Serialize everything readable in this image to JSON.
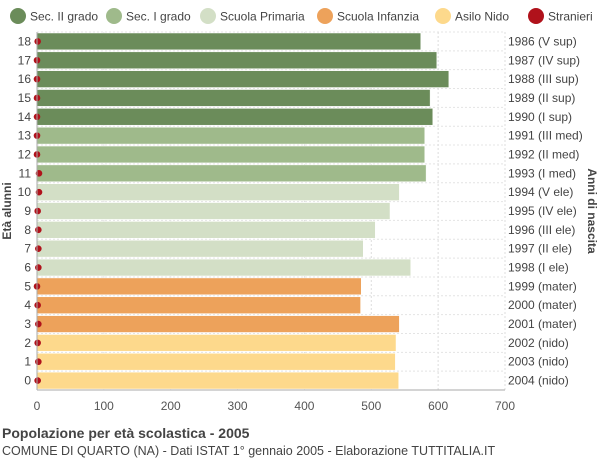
{
  "chart_data": {
    "type": "bar",
    "orientation": "horizontal",
    "ylabel_left": "Età alunni",
    "ylabel_right": "Anni di nascita",
    "xlim": [
      0,
      700
    ],
    "x_ticks": [
      0,
      100,
      200,
      300,
      400,
      500,
      600,
      700
    ],
    "grid": true,
    "legend_position": "top",
    "legend": [
      {
        "label": "Sec. II grado",
        "color": "#6b8c5a"
      },
      {
        "label": "Sec. I grado",
        "color": "#9fba8b"
      },
      {
        "label": "Scuola Primaria",
        "color": "#d3dfc6"
      },
      {
        "label": "Scuola Infanzia",
        "color": "#eda25b"
      },
      {
        "label": "Asilo Nido",
        "color": "#fdd98c"
      },
      {
        "label": "Stranieri",
        "color": "#b0121b"
      }
    ],
    "bars": [
      {
        "age": "18",
        "birth": "1986 (V sup)",
        "value": 574,
        "stranieri": 1,
        "level": 0
      },
      {
        "age": "17",
        "birth": "1987 (IV sup)",
        "value": 598,
        "stranieri": 0,
        "level": 0
      },
      {
        "age": "16",
        "birth": "1988 (III sup)",
        "value": 616,
        "stranieri": 0,
        "level": 0
      },
      {
        "age": "15",
        "birth": "1989 (II sup)",
        "value": 588,
        "stranieri": 0,
        "level": 0
      },
      {
        "age": "14",
        "birth": "1990 (I sup)",
        "value": 592,
        "stranieri": 0,
        "level": 0
      },
      {
        "age": "13",
        "birth": "1991 (III med)",
        "value": 580,
        "stranieri": 0,
        "level": 1
      },
      {
        "age": "12",
        "birth": "1992 (II med)",
        "value": 580,
        "stranieri": 0,
        "level": 1
      },
      {
        "age": "11",
        "birth": "1993 (I med)",
        "value": 582,
        "stranieri": 3,
        "level": 1
      },
      {
        "age": "10",
        "birth": "1994 (V ele)",
        "value": 542,
        "stranieri": 3,
        "level": 2
      },
      {
        "age": "9",
        "birth": "1995 (IV ele)",
        "value": 528,
        "stranieri": 1,
        "level": 2
      },
      {
        "age": "8",
        "birth": "1996 (III ele)",
        "value": 506,
        "stranieri": 2,
        "level": 2
      },
      {
        "age": "7",
        "birth": "1997 (II ele)",
        "value": 488,
        "stranieri": 2,
        "level": 2
      },
      {
        "age": "6",
        "birth": "1998 (I ele)",
        "value": 559,
        "stranieri": 2,
        "level": 2
      },
      {
        "age": "5",
        "birth": "1999 (mater)",
        "value": 485,
        "stranieri": 0,
        "level": 3
      },
      {
        "age": "4",
        "birth": "2000 (mater)",
        "value": 484,
        "stranieri": 1,
        "level": 3
      },
      {
        "age": "3",
        "birth": "2001 (mater)",
        "value": 542,
        "stranieri": 2,
        "level": 3
      },
      {
        "age": "2",
        "birth": "2002 (nido)",
        "value": 537,
        "stranieri": 1,
        "level": 4
      },
      {
        "age": "1",
        "birth": "2003 (nido)",
        "value": 536,
        "stranieri": 2,
        "level": 4
      },
      {
        "age": "0",
        "birth": "2004 (nido)",
        "value": 541,
        "stranieri": 1,
        "level": 4
      }
    ]
  },
  "footer": {
    "title": "Popolazione per età scolastica - 2005",
    "subtitle": "COMUNE DI QUARTO (NA) - Dati ISTAT 1° gennaio 2005 - Elaborazione TUTTITALIA.IT"
  }
}
